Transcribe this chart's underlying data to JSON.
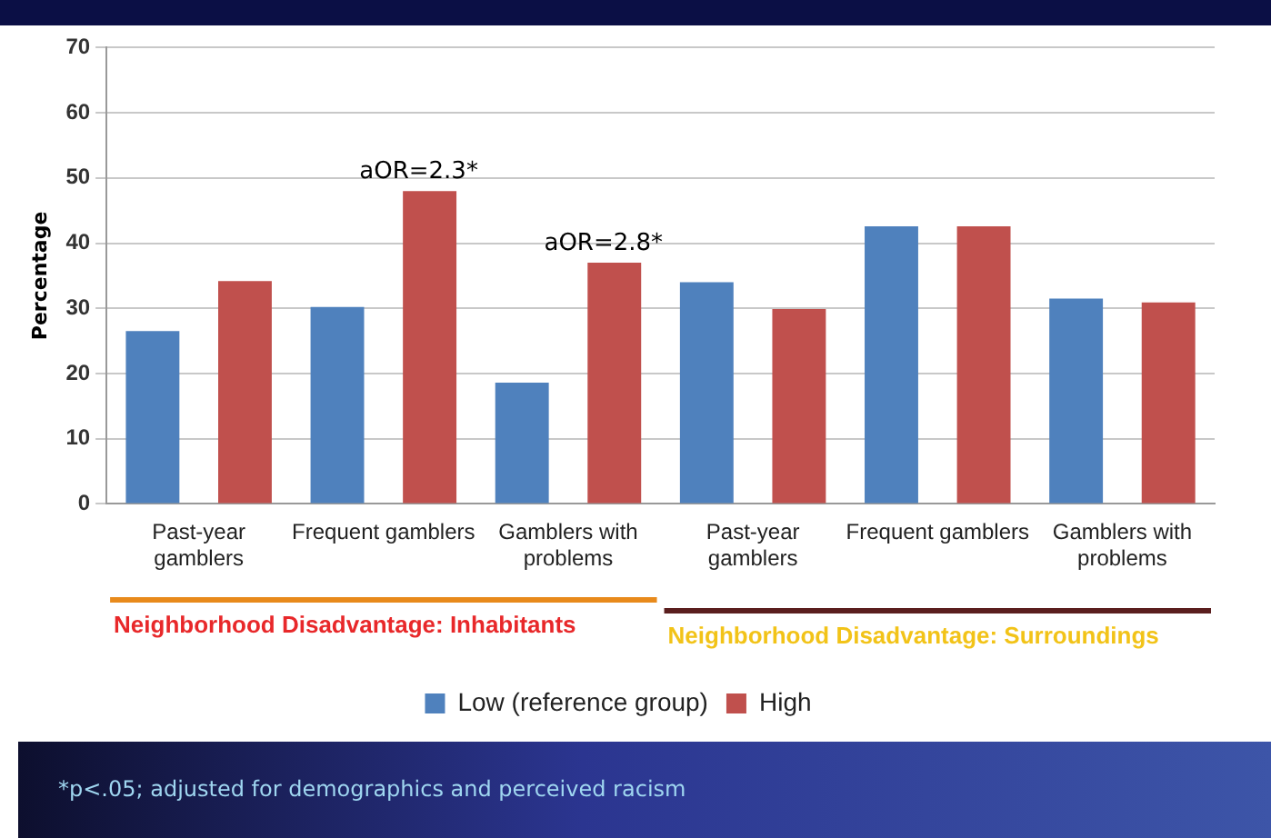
{
  "chart_data": {
    "type": "bar",
    "ylabel": "Percentage",
    "categories": [
      "Past-year gamblers",
      "Frequent gamblers",
      "Gamblers with problems",
      "Past-year gamblers",
      "Frequent gamblers",
      "Gamblers with problems"
    ],
    "series": [
      {
        "name": "Low (reference group)",
        "color": "#4f81bd",
        "values": [
          26.5,
          30.2,
          18.6,
          34,
          42.6,
          31.5
        ]
      },
      {
        "name": "High",
        "color": "#c0504d",
        "values": [
          34.2,
          48,
          37,
          29.9,
          42.6,
          30.9
        ]
      }
    ],
    "ylim": [
      0,
      70
    ],
    "yticks": [
      0,
      10,
      20,
      30,
      40,
      50,
      60,
      70
    ],
    "grid": "y",
    "legend": "bottom",
    "annotations": [
      "aOR=2.3*",
      "aOR=2.8*",
      "Neighborhood Disadvantage: Inhabitants",
      "Neighborhood Disadvantage: Surroundings",
      "*p<.05; adjusted for demographics and perceived racism"
    ]
  }
}
